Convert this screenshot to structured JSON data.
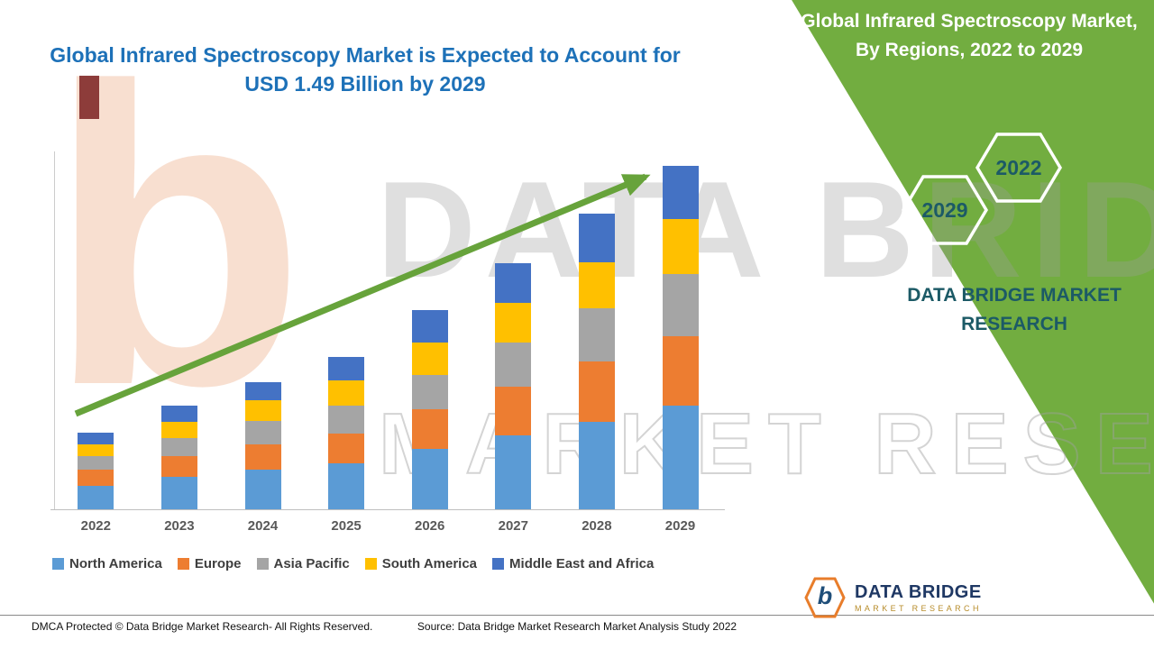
{
  "header": {
    "title_line1": "Global Infrared Spectroscopy Market is Expected to Account for",
    "title_line2": "USD 1.49 Billion by 2029"
  },
  "right_panel": {
    "heading_line1": "Global Infrared Spectroscopy Market,",
    "heading_line2": "By Regions, 2022 to 2029",
    "hexagon_left_label": "2029",
    "hexagon_right_label": "2022",
    "brand_line1": "DATA BRIDGE MARKET",
    "brand_line2": "RESEARCH"
  },
  "watermark": {
    "big_text": "DATA BRIDGE",
    "outline_text": "MARKET RESEARCH",
    "logo_letter": "b"
  },
  "logo": {
    "letter": "b",
    "name": "DATA BRIDGE",
    "tagline": "MARKET RESEARCH"
  },
  "footer": {
    "dmca": "DMCA Protected © Data Bridge Market Research- All Rights Reserved.",
    "source": "Source: Data Bridge Market Research Market Analysis Study 2022"
  },
  "colors": {
    "green_panel": "#72AD40",
    "arrow_green": "#67A33B",
    "title_blue": "#1D71B8",
    "brand_teal": "#1C5A66"
  },
  "chart_data": {
    "type": "bar",
    "stacked": true,
    "title": "Global Infrared Spectroscopy Market, By Regions, 2022 to 2029",
    "unit": "USD Billion",
    "categories": [
      "2022",
      "2023",
      "2024",
      "2025",
      "2026",
      "2027",
      "2028",
      "2029"
    ],
    "series": [
      {
        "name": "North America",
        "color": "#5B9BD5",
        "values": [
          0.1,
          0.14,
          0.17,
          0.2,
          0.26,
          0.32,
          0.38,
          0.45
        ]
      },
      {
        "name": "Europe",
        "color": "#ED7D31",
        "values": [
          0.07,
          0.09,
          0.11,
          0.13,
          0.17,
          0.21,
          0.26,
          0.3
        ]
      },
      {
        "name": "Asia Pacific",
        "color": "#A5A5A5",
        "values": [
          0.06,
          0.08,
          0.1,
          0.12,
          0.15,
          0.19,
          0.23,
          0.27
        ]
      },
      {
        "name": "South America",
        "color": "#FFC000",
        "values": [
          0.05,
          0.07,
          0.09,
          0.11,
          0.14,
          0.17,
          0.2,
          0.24
        ]
      },
      {
        "name": "Middle East and Africa",
        "color": "#4472C4",
        "values": [
          0.05,
          0.07,
          0.08,
          0.1,
          0.14,
          0.17,
          0.21,
          0.23
        ]
      }
    ],
    "totals_estimated": [
      0.33,
      0.45,
      0.55,
      0.66,
      0.86,
      1.06,
      1.28,
      1.49
    ],
    "xlabel": "",
    "ylabel": "",
    "ylim": [
      0,
      1.6
    ],
    "grid": false,
    "legend_position": "bottom",
    "trend_arrow": true
  }
}
